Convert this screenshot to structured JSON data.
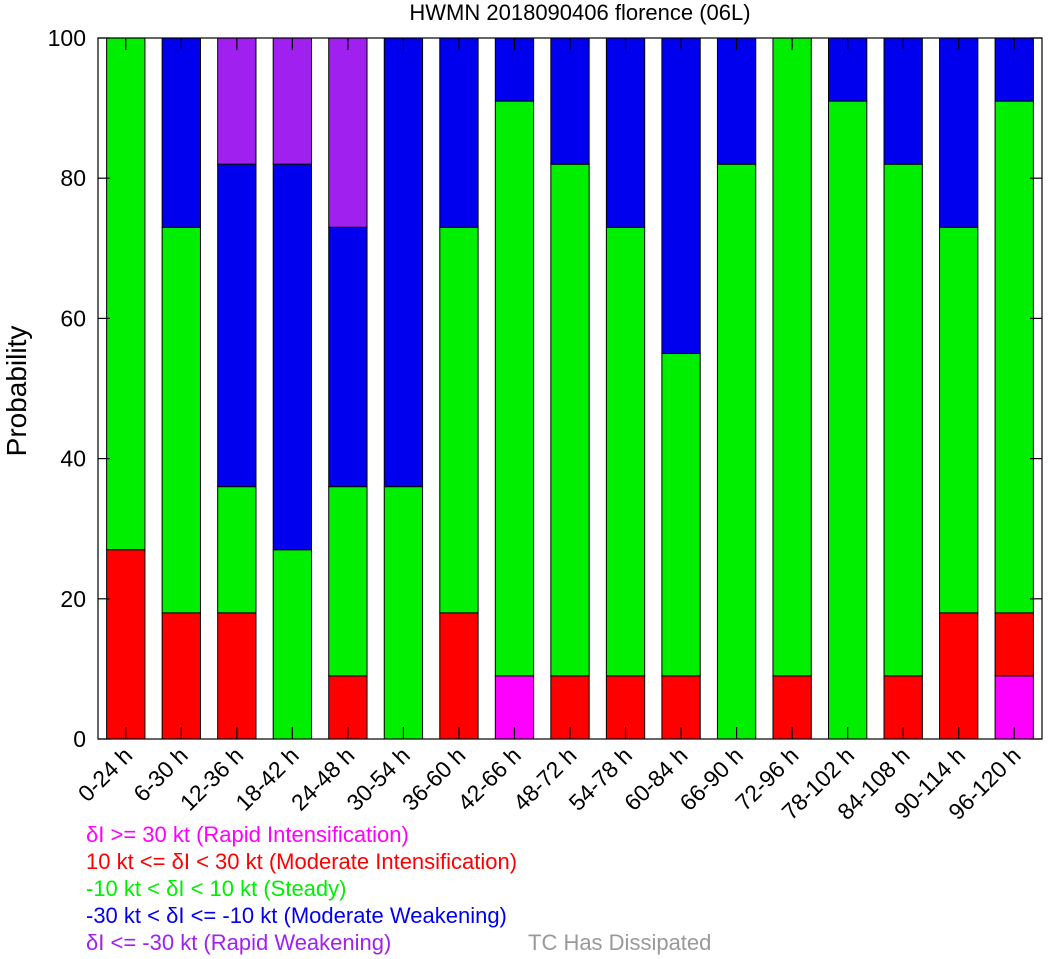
{
  "chart_data": {
    "type": "bar",
    "stacked": true,
    "title": "HWMN 2018090406 florence (06L)",
    "xlabel": "",
    "ylabel": "Probability",
    "ylim": [
      0,
      100
    ],
    "yticks": [
      "0",
      "20",
      "40",
      "60",
      "80",
      "100"
    ],
    "categories": [
      "0-24 h",
      "6-30 h",
      "12-36 h",
      "18-42 h",
      "24-48 h",
      "30-54 h",
      "36-60 h",
      "42-66 h",
      "48-72 h",
      "54-78 h",
      "60-84 h",
      "66-90 h",
      "72-96 h",
      "78-102 h",
      "84-108 h",
      "90-114 h",
      "96-120 h"
    ],
    "series": [
      {
        "name": "δI >= 30 kt (Rapid Intensification)",
        "color": "#ff00ff",
        "values": [
          0,
          0,
          0,
          0,
          0,
          0,
          0,
          9,
          0,
          0,
          0,
          0,
          0,
          0,
          0,
          0,
          9
        ]
      },
      {
        "name": "10 kt <= δI < 30 kt (Moderate Intensification)",
        "color": "#ff0000",
        "values": [
          27,
          18,
          18,
          0,
          9,
          0,
          18,
          0,
          9,
          9,
          9,
          0,
          9,
          0,
          9,
          18,
          9
        ]
      },
      {
        "name": "-10 kt < δI < 10 kt (Steady)",
        "color": "#00ee00",
        "values": [
          73,
          55,
          18,
          27,
          27,
          36,
          55,
          82,
          73,
          64,
          46,
          82,
          91,
          91,
          73,
          55,
          73
        ]
      },
      {
        "name": "-30 kt < δI <= -10 kt (Moderate Weakening)",
        "color": "#0000ee",
        "values": [
          0,
          27,
          46,
          55,
          37,
          64,
          27,
          9,
          18,
          27,
          45,
          18,
          0,
          9,
          18,
          27,
          9
        ]
      },
      {
        "name": "δI <= -30 kt (Rapid Weakening)",
        "color": "#a020f0",
        "values": [
          0,
          0,
          18,
          18,
          27,
          0,
          0,
          0,
          0,
          0,
          0,
          0,
          0,
          0,
          0,
          0,
          0
        ]
      }
    ],
    "legend_extra": {
      "name": "TC Has Dissipated",
      "color": "#999999"
    },
    "grid": false,
    "legend_placement": "bottom-left"
  }
}
